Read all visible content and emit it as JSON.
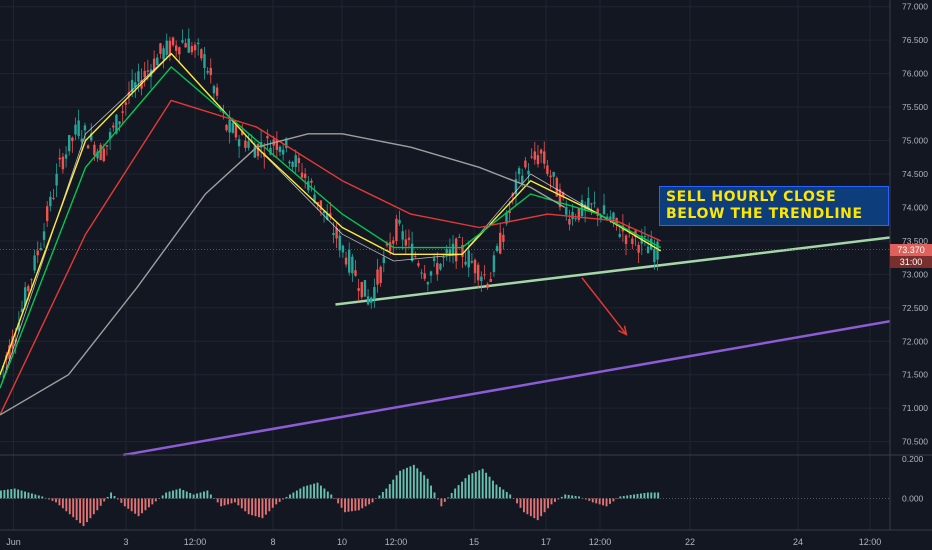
{
  "chart_data": [
    {
      "type": "candlestick",
      "x_ticks": [
        "Jun",
        "3",
        "12:00",
        "8",
        "10",
        "12:00",
        "15",
        "17",
        "12:00",
        "22",
        "24",
        "12:00"
      ],
      "y_ticks": [
        "77.000",
        "76.500",
        "76.000",
        "75.500",
        "75.000",
        "74.500",
        "74.000",
        "73.500",
        "73.000",
        "72.500",
        "72.000",
        "71.500",
        "71.000",
        "70.500"
      ],
      "ylim": [
        70.3,
        77.1
      ],
      "last_price": "73.370",
      "countdown": "31:00",
      "price_path": [
        [
          0,
          71.5
        ],
        [
          0.05,
          72.2
        ],
        [
          0.12,
          73.5
        ],
        [
          0.18,
          74.7
        ],
        [
          0.23,
          75.2
        ],
        [
          0.3,
          74.8
        ],
        [
          0.38,
          75.7
        ],
        [
          0.47,
          76.3
        ],
        [
          0.54,
          76.5
        ],
        [
          0.6,
          76.2
        ],
        [
          0.66,
          75.2
        ],
        [
          0.75,
          74.9
        ],
        [
          0.82,
          75.0
        ],
        [
          0.9,
          74.4
        ],
        [
          1.0,
          73.4
        ],
        [
          1.08,
          72.6
        ],
        [
          1.16,
          73.7
        ],
        [
          1.25,
          73.0
        ],
        [
          1.34,
          73.4
        ],
        [
          1.43,
          72.9
        ],
        [
          1.52,
          74.5
        ],
        [
          1.58,
          74.8
        ],
        [
          1.66,
          73.9
        ],
        [
          1.74,
          74.0
        ],
        [
          1.83,
          73.6
        ],
        [
          1.93,
          73.3
        ]
      ],
      "series": [
        {
          "name": "",
          "color": "#ffffff",
          "values": [
            [
              0,
              71.3
            ],
            [
              0.25,
              75.1
            ],
            [
              0.5,
              76.3
            ],
            [
              0.75,
              74.9
            ],
            [
              1.0,
              73.6
            ],
            [
              1.15,
              73.2
            ],
            [
              1.35,
              73.3
            ],
            [
              1.55,
              74.5
            ],
            [
              1.75,
              73.9
            ],
            [
              1.93,
              73.35
            ]
          ]
        },
        {
          "name": "",
          "color": "#ffeb3b",
          "values": [
            [
              0,
              71.5
            ],
            [
              0.25,
              75.0
            ],
            [
              0.5,
              76.3
            ],
            [
              0.75,
              74.9
            ],
            [
              1.0,
              73.7
            ],
            [
              1.15,
              73.3
            ],
            [
              1.35,
              73.3
            ],
            [
              1.55,
              74.4
            ],
            [
              1.75,
              73.9
            ],
            [
              1.93,
              73.35
            ]
          ]
        },
        {
          "name": "",
          "color": "#00c853",
          "values": [
            [
              0,
              71.3
            ],
            [
              0.25,
              74.6
            ],
            [
              0.5,
              76.1
            ],
            [
              0.75,
              75.0
            ],
            [
              1.0,
              73.9
            ],
            [
              1.15,
              73.4
            ],
            [
              1.35,
              73.4
            ],
            [
              1.55,
              74.2
            ],
            [
              1.75,
              73.9
            ],
            [
              1.93,
              73.4
            ]
          ]
        },
        {
          "name": "",
          "color": "#e53935",
          "values": [
            [
              0,
              70.9
            ],
            [
              0.25,
              73.6
            ],
            [
              0.5,
              75.6
            ],
            [
              0.75,
              75.2
            ],
            [
              1.0,
              74.4
            ],
            [
              1.2,
              73.9
            ],
            [
              1.4,
              73.7
            ],
            [
              1.6,
              73.9
            ],
            [
              1.8,
              73.8
            ],
            [
              1.93,
              73.5
            ]
          ]
        },
        {
          "name": "",
          "color": "#9e9e9e",
          "values": [
            [
              0,
              70.9
            ],
            [
              0.2,
              71.5
            ],
            [
              0.4,
              72.8
            ],
            [
              0.6,
              74.2
            ],
            [
              0.75,
              74.9
            ],
            [
              0.9,
              75.1
            ],
            [
              1.0,
              75.1
            ],
            [
              1.2,
              74.9
            ],
            [
              1.4,
              74.6
            ],
            [
              1.55,
              74.3
            ],
            [
              1.65,
              74.0
            ]
          ]
        }
      ],
      "trendlines": [
        {
          "name": "",
          "color": "#a5d6a7",
          "points": [
            [
              0.98,
              72.55
            ],
            [
              2.6,
              73.55
            ]
          ]
        },
        {
          "name": "",
          "color": "#8c5cd4",
          "points": [
            [
              0.36,
              70.3
            ],
            [
              2.6,
              72.3
            ]
          ]
        }
      ],
      "arrow": {
        "color": "#e53935",
        "from": [
          1.7,
          72.95
        ],
        "to": [
          1.83,
          72.1
        ]
      },
      "annotation": [
        "SELL HOURLY CLOSE",
        "BELOW THE TRENDLINE"
      ]
    },
    {
      "type": "histogram",
      "y_ticks": [
        "0.200",
        "0.000"
      ],
      "ylim": [
        -0.16,
        0.22
      ],
      "bars": [
        0.04,
        0.05,
        0.03,
        0.01,
        -0.02,
        -0.08,
        -0.14,
        -0.06,
        0.03,
        -0.04,
        -0.09,
        -0.03,
        0.03,
        0.05,
        0.02,
        0.04,
        -0.04,
        -0.02,
        -0.08,
        -0.1,
        -0.03,
        0.02,
        0.06,
        0.08,
        0.02,
        -0.07,
        -0.06,
        -0.02,
        0.05,
        0.14,
        0.17,
        0.1,
        -0.04,
        0.05,
        0.12,
        0.15,
        0.07,
        0.02,
        -0.07,
        -0.11,
        -0.03,
        0.02,
        0.01,
        -0.02,
        -0.04,
        0.01,
        0.02,
        0.03
      ]
    }
  ],
  "icons": {
    "price_tag_bg": "#e0615b",
    "countdown_bg": "#7a2f2f"
  }
}
